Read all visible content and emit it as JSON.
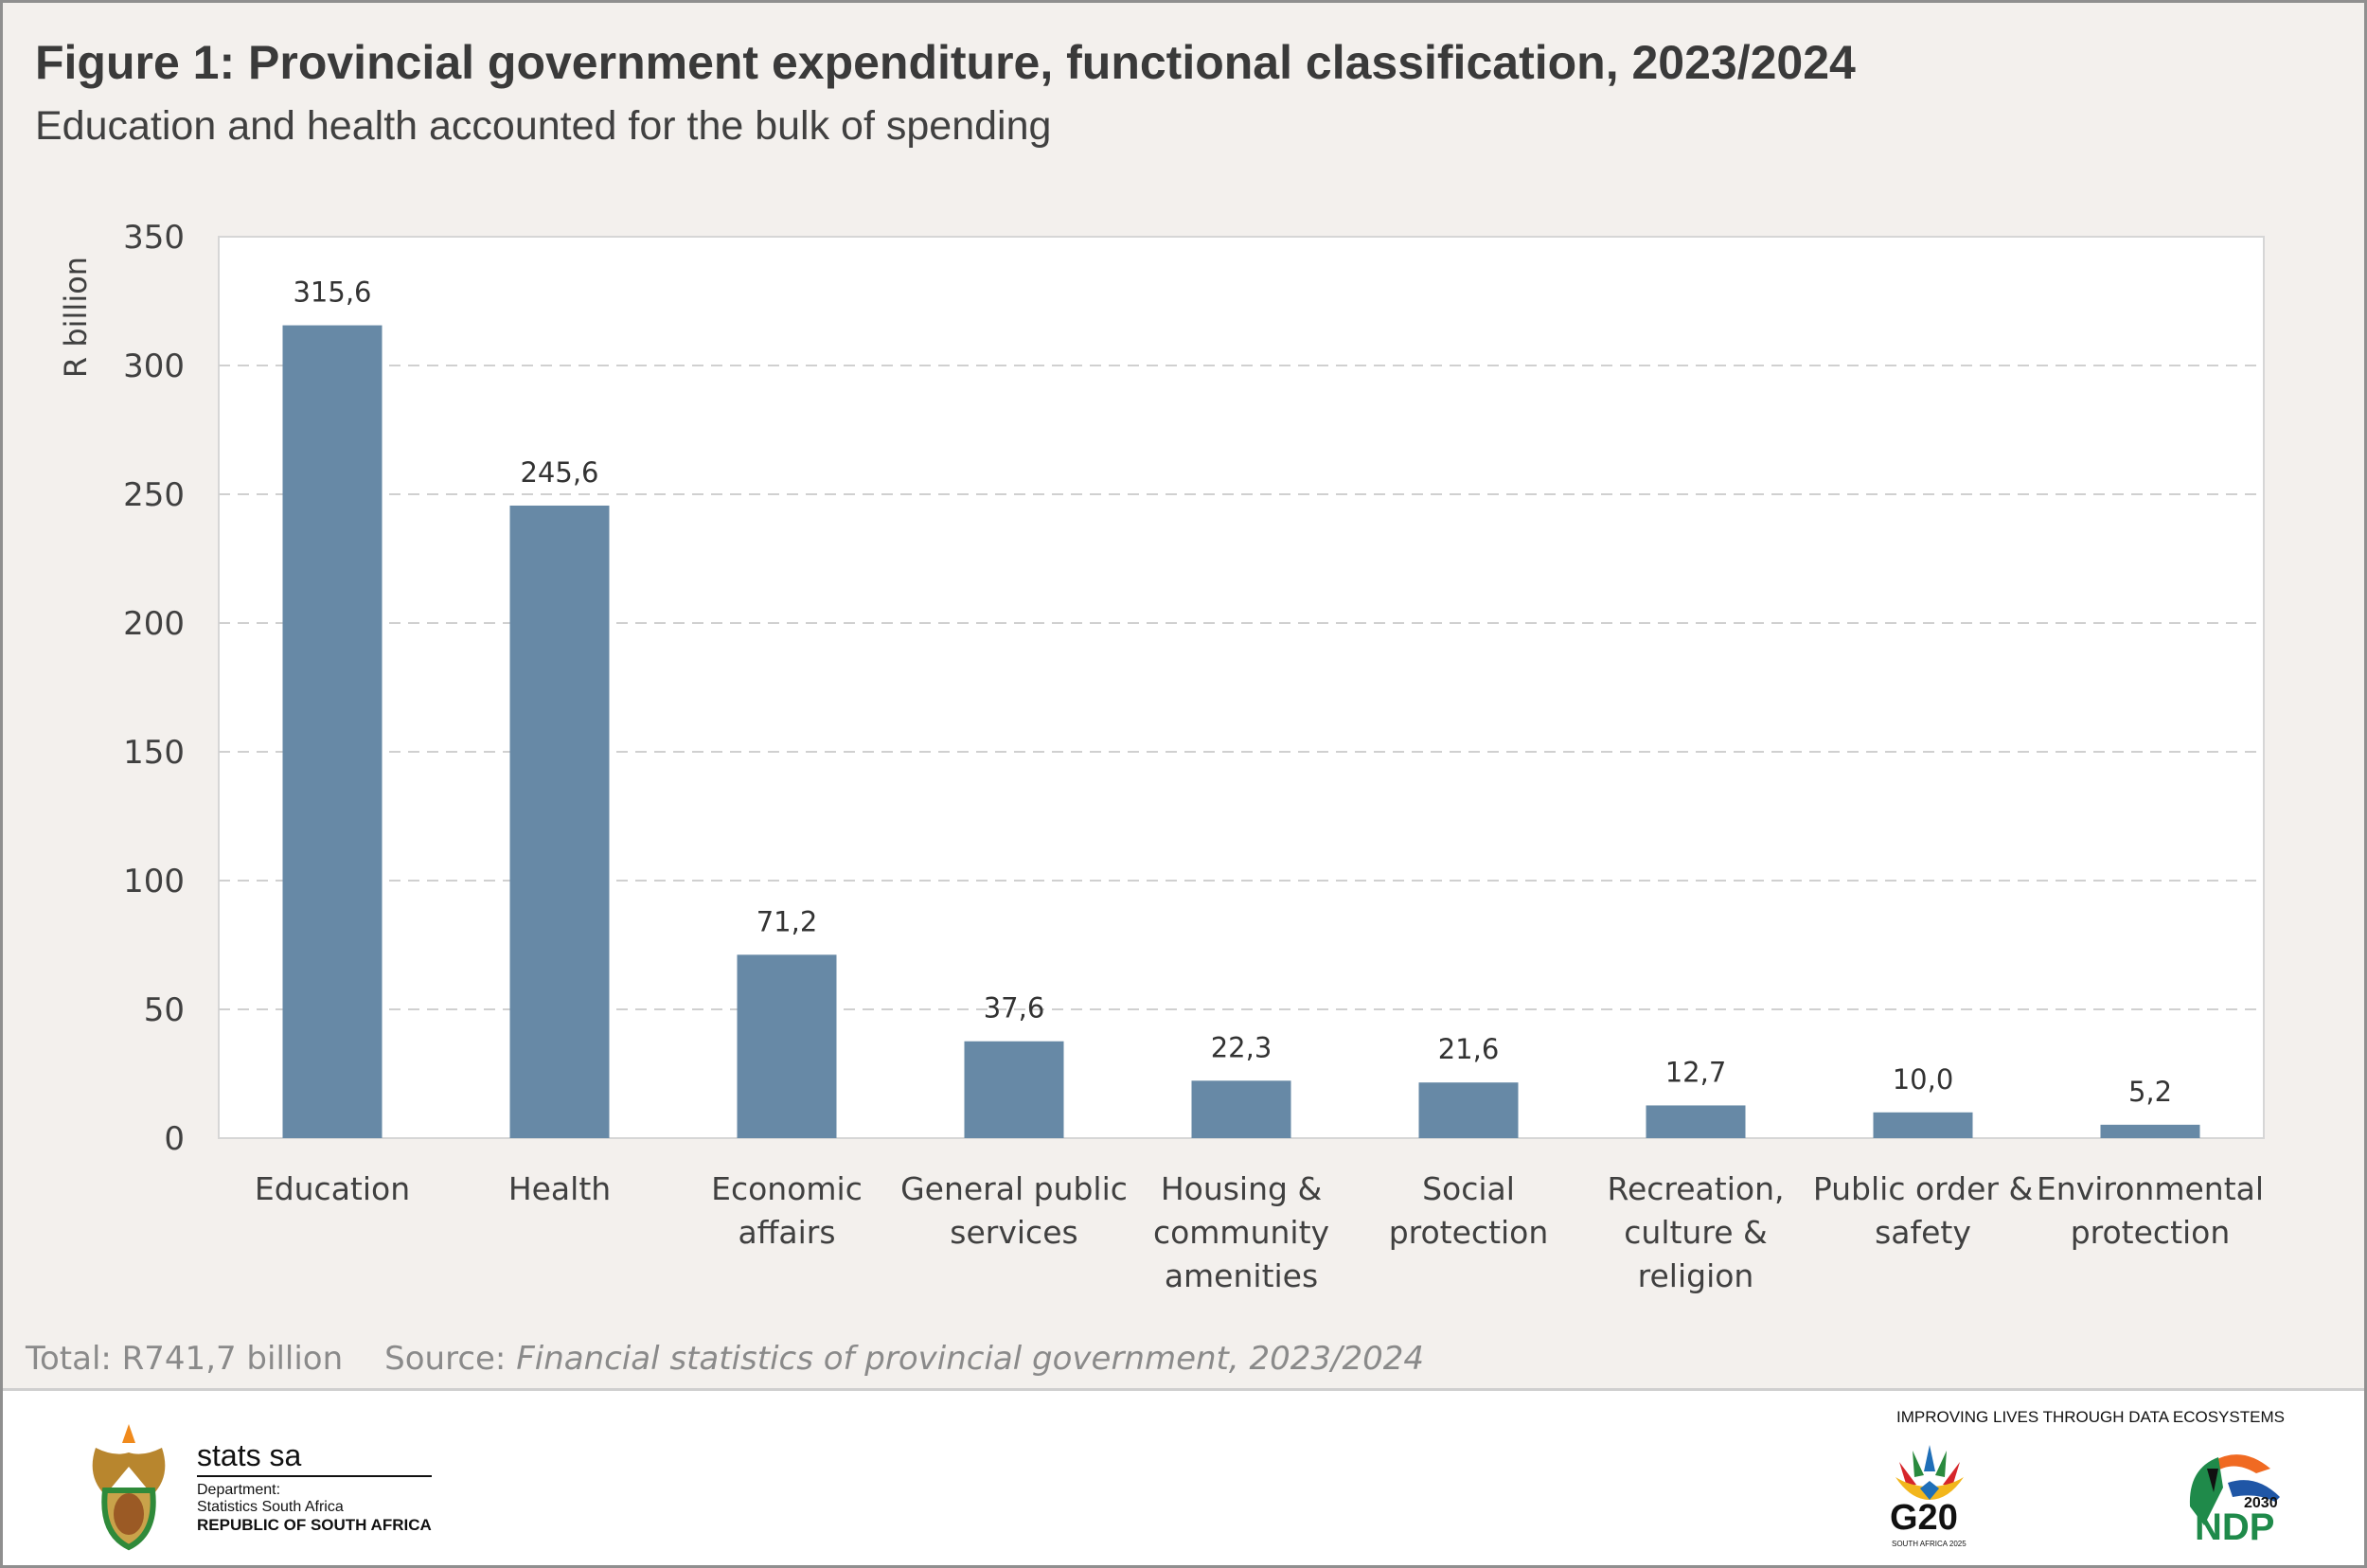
{
  "title": "Figure 1: Provincial government expenditure, functional classification, 2023/2024",
  "subtitle": "Education and health accounted for the bulk of spending",
  "chart_data": {
    "type": "bar",
    "title": "Figure 1: Provincial government expenditure, functional classification, 2023/2024",
    "ylabel": "R billion",
    "xlabel": "",
    "ylim": [
      0,
      350
    ],
    "yticks": [
      0,
      50,
      100,
      150,
      200,
      250,
      300,
      350
    ],
    "grid": "horizontal dashed",
    "categories": [
      [
        "Education"
      ],
      [
        "Health"
      ],
      [
        "Economic",
        "affairs"
      ],
      [
        "General public",
        "services"
      ],
      [
        "Housing &",
        "community",
        "amenities"
      ],
      [
        "Social",
        "protection"
      ],
      [
        "Recreation,",
        "culture &",
        "religion"
      ],
      [
        "Public order &",
        "safety"
      ],
      [
        "Environmental",
        "protection"
      ]
    ],
    "values": [
      315.6,
      245.6,
      71.2,
      37.6,
      22.3,
      21.6,
      12.7,
      10.0,
      5.2
    ],
    "data_labels": [
      "315,6",
      "245,6",
      "71,2",
      "37,6",
      "22,3",
      "21,6",
      "12,7",
      "10,0",
      "5,2"
    ],
    "bar_color": "#6789a6"
  },
  "note": {
    "total": "Total: R741,7  billion",
    "source_label": "Source: ",
    "source_title": "Financial statistics of provincial government, 2023/2024"
  },
  "footer": {
    "org_name": "stats sa",
    "dept_label": "Department:",
    "dept_name": "Statistics South Africa",
    "country": "REPUBLIC OF SOUTH AFRICA",
    "tagline": "IMPROVING LIVES THROUGH DATA ECOSYSTEMS",
    "g20_text": "G20",
    "g20_sub": "SOUTH AFRICA 2025",
    "ndp_year": "2030",
    "ndp_text": "NDP"
  }
}
